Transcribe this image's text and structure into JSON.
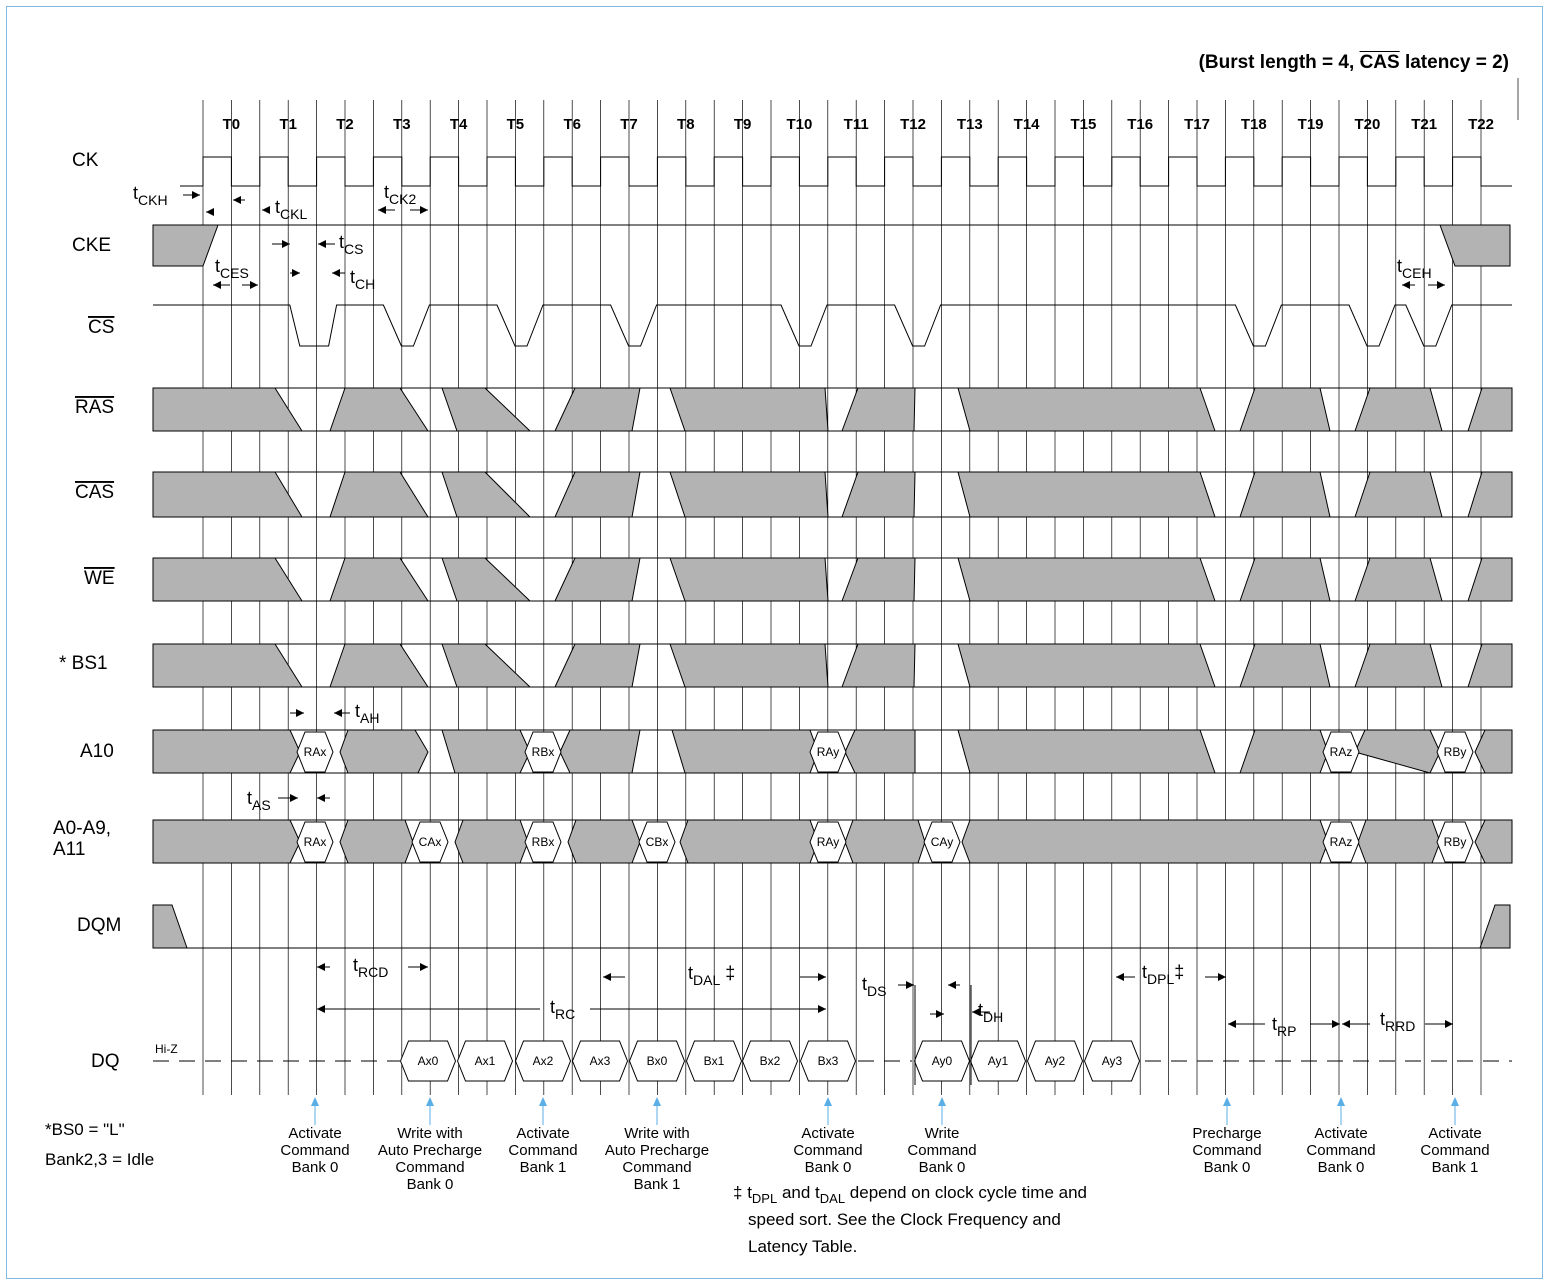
{
  "burst_note": {
    "prefix": "(Burst length = 4, ",
    "cas": "CAS",
    "suffix": " latency = 2)"
  },
  "ticks": [
    "T0",
    "T1",
    "T2",
    "T3",
    "T4",
    "T5",
    "T6",
    "T7",
    "T8",
    "T9",
    "T10",
    "T11",
    "T12",
    "T13",
    "T14",
    "T15",
    "T16",
    "T17",
    "T18",
    "T19",
    "T20",
    "T21",
    "T22"
  ],
  "signals": {
    "ck": "CK",
    "cke": "CKE",
    "cs": "CS",
    "ras": "RAS",
    "cas": "CAS",
    "we": "WE",
    "bs1": "* BS1",
    "a10": "A10",
    "a0a9_line1": "A0-A9,",
    "a0a9_line2": "A11",
    "dqm": "DQM",
    "dq": "DQ"
  },
  "a10_cells": [
    "RAx",
    "RBx",
    "RAy",
    "RAz",
    "RBy"
  ],
  "addr_cells": [
    "RAx",
    "CAx",
    "RBx",
    "CBx",
    "RAy",
    "CAy",
    "RAz",
    "RBy"
  ],
  "dq_cells": [
    "Ax0",
    "Ax1",
    "Ax2",
    "Ax3",
    "Bx0",
    "Bx1",
    "Bx2",
    "Bx3",
    "Ay0",
    "Ay1",
    "Ay2",
    "Ay3"
  ],
  "hiz": "Hi-Z",
  "timing_params": [
    {
      "base": "t",
      "sub": "CKH"
    },
    {
      "base": "t",
      "sub": "CKL"
    },
    {
      "base": "t",
      "sub": "CK2"
    },
    {
      "base": "t",
      "sub": "CS"
    },
    {
      "base": "t",
      "sub": "CES"
    },
    {
      "base": "t",
      "sub": "CH"
    },
    {
      "base": "t",
      "sub": "CEH"
    },
    {
      "base": "t",
      "sub": "AH"
    },
    {
      "base": "t",
      "sub": "AS"
    },
    {
      "base": "t",
      "sub": "RCD"
    },
    {
      "base": "t",
      "sub": "DAL",
      "suffix": " ‡"
    },
    {
      "base": "t",
      "sub": "RC"
    },
    {
      "base": "t",
      "sub": "DS"
    },
    {
      "base": "t",
      "sub": "DH"
    },
    {
      "base": "t",
      "sub": "DPL",
      "suffix": "‡"
    },
    {
      "base": "t",
      "sub": "RP"
    },
    {
      "base": "t",
      "sub": "RRD"
    }
  ],
  "commands": [
    [
      "Activate",
      "Command",
      "Bank 0"
    ],
    [
      "Write with",
      "Auto Precharge",
      "Command",
      "Bank 0"
    ],
    [
      "Activate",
      "Command",
      "Bank 1"
    ],
    [
      "Write with",
      "Auto Precharge",
      "Command",
      "Bank 1"
    ],
    [
      "Activate",
      "Command",
      "Bank 0"
    ],
    [
      "Write",
      "Command",
      "Bank 0"
    ],
    [
      "Precharge",
      "Command",
      "Bank 0"
    ],
    [
      "Activate",
      "Command",
      "Bank 0"
    ],
    [
      "Activate",
      "Command",
      "Bank 1"
    ]
  ],
  "footnote_left": {
    "bs0": "*BS0 = \"L\"",
    "idle": "Bank2,3 = Idle"
  },
  "footnote_main": {
    "dagger": "‡ ",
    "t1": "t",
    "s1": "DPL",
    "and": " and ",
    "t2": "t",
    "s2": "DAL",
    "rest1": " depend on clock cycle time and",
    "rest2": "speed sort. See the Clock Frequency and",
    "rest3": "Latency Table."
  },
  "colors": {
    "fill": "#b3b3b3",
    "arrow": "#5aaee6",
    "frame": "#7fb9df",
    "line": "#000000"
  }
}
